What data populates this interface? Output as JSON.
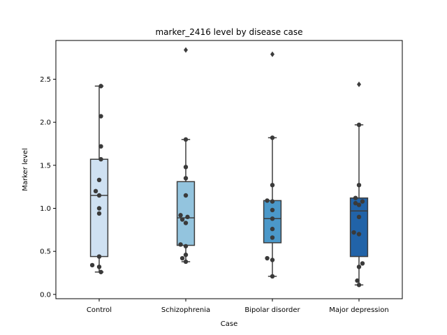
{
  "chart_data": {
    "type": "box",
    "title": "marker_2416 level by disease case",
    "xlabel": "Case",
    "ylabel": "Marker level",
    "ylim": [
      -0.05,
      2.95
    ],
    "yticks": [
      "0.0",
      "0.5",
      "1.0",
      "1.5",
      "2.0",
      "2.5"
    ],
    "grid": false,
    "categories": [
      "Control",
      "Schizophrenia",
      "Bipolar disorder",
      "Major depression"
    ],
    "colors": [
      "#cfe1f2",
      "#93c4de",
      "#4b98c9",
      "#2163a8"
    ],
    "boxes": [
      {
        "category": "Control",
        "whislo": 0.26,
        "q1": 0.44,
        "med": 1.15,
        "q3": 1.57,
        "whishi": 2.42,
        "fliers": []
      },
      {
        "category": "Schizophrenia",
        "whislo": 0.38,
        "q1": 0.57,
        "med": 0.89,
        "q3": 1.31,
        "whishi": 1.8,
        "fliers": [
          2.84
        ]
      },
      {
        "category": "Bipolar disorder",
        "whislo": 0.21,
        "q1": 0.6,
        "med": 0.88,
        "q3": 1.09,
        "whishi": 1.82,
        "fliers": [
          2.79
        ]
      },
      {
        "category": "Major depression",
        "whislo": 0.11,
        "q1": 0.44,
        "med": 0.97,
        "q3": 1.12,
        "whishi": 1.97,
        "fliers": [
          2.44
        ]
      }
    ],
    "points": [
      {
        "category": "Control",
        "values": [
          2.42,
          2.07,
          1.72,
          1.57,
          1.33,
          1.2,
          1.15,
          1.0,
          0.94,
          0.44,
          0.34,
          0.32,
          0.26
        ],
        "offsets": [
          0.02,
          0.02,
          0.02,
          0.02,
          0.0,
          -0.04,
          0.0,
          0.0,
          0.0,
          0.0,
          -0.08,
          0.0,
          0.02
        ]
      },
      {
        "category": "Schizophrenia",
        "values": [
          1.8,
          1.48,
          1.35,
          1.15,
          0.92,
          0.9,
          0.87,
          0.83,
          0.58,
          0.56,
          0.46,
          0.42,
          0.38
        ],
        "offsets": [
          0.0,
          0.0,
          0.0,
          0.0,
          -0.06,
          0.02,
          -0.04,
          0.0,
          -0.06,
          0.0,
          0.0,
          -0.04,
          0.0
        ]
      },
      {
        "category": "Bipolar disorder",
        "values": [
          1.82,
          1.27,
          1.09,
          1.08,
          0.98,
          0.88,
          0.76,
          0.66,
          0.42,
          0.4,
          0.21
        ],
        "offsets": [
          0.0,
          0.0,
          -0.06,
          0.0,
          0.0,
          0.0,
          0.0,
          0.0,
          -0.06,
          0.0,
          0.0
        ]
      },
      {
        "category": "Major depression",
        "values": [
          1.97,
          1.27,
          1.12,
          1.08,
          1.06,
          1.04,
          0.9,
          0.72,
          0.7,
          0.36,
          0.32,
          0.16,
          0.11
        ],
        "offsets": [
          0.0,
          0.0,
          -0.04,
          0.04,
          -0.04,
          0.0,
          0.0,
          -0.06,
          0.0,
          0.04,
          0.0,
          -0.02,
          0.0
        ]
      }
    ]
  }
}
